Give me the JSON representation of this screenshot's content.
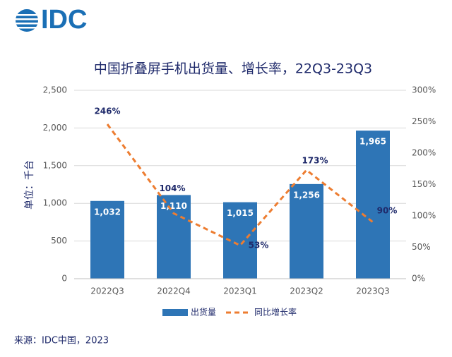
{
  "logo": "IDC",
  "source": "来源：IDC中国，2023",
  "chart_data": {
    "type": "bar",
    "title": "中国折叠屏手机出货量、增长率，22Q3-23Q3",
    "y_label": "单位：千台",
    "categories": [
      "2022Q3",
      "2022Q4",
      "2023Q1",
      "2023Q2",
      "2023Q3"
    ],
    "series": [
      {
        "name": "出货量",
        "color": "#2e75b6",
        "values": [
          1032,
          1110,
          1015,
          1256,
          1965
        ],
        "value_labels": [
          "1,032",
          "1,110",
          "1,015",
          "1,256",
          "1,965"
        ]
      },
      {
        "name": "同比增长率",
        "type": "line",
        "axis": "y2",
        "color": "#ed7d31",
        "values": [
          246,
          104,
          53,
          173,
          90
        ],
        "value_labels": [
          "246%",
          "104%",
          "53%",
          "173%",
          "90%"
        ]
      }
    ],
    "ylim": [
      0,
      2500
    ],
    "yticks": [
      0,
      500,
      {
        "value": 1000,
        "label": "1,000"
      },
      {
        "value": 1500,
        "label": "1,500"
      },
      {
        "value": 2000,
        "label": "2,000"
      },
      {
        "value": 2500,
        "label": "2,500"
      }
    ],
    "y2lim": [
      0,
      300
    ],
    "y2ticks": [
      {
        "value": 0,
        "label": "0%"
      },
      {
        "value": 50,
        "label": "50%"
      },
      {
        "value": 100,
        "label": "100%"
      },
      {
        "value": 150,
        "label": "150%"
      },
      {
        "value": 200,
        "label": "200%"
      },
      {
        "value": 250,
        "label": "250%"
      },
      {
        "value": 300,
        "label": "300%"
      }
    ],
    "grid": true,
    "legend": "bottom"
  }
}
